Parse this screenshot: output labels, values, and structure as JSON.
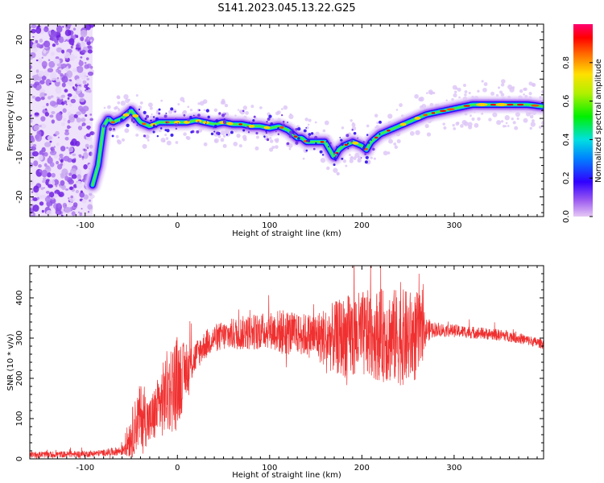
{
  "title": "S141.2023.045.13.22.G25",
  "chart_data": [
    {
      "type": "heatmap",
      "name": "spectrogram",
      "xlabel": "Height of straight line (km)",
      "ylabel": "Frequency (Hz)",
      "xlim": [
        -160,
        397
      ],
      "ylim": [
        -25,
        24
      ],
      "xticks": [
        -100,
        0,
        100,
        200,
        300
      ],
      "yticks": [
        -20,
        -10,
        0,
        10,
        20
      ],
      "colorbar": {
        "label": "Normalized spectral amplitude",
        "range": [
          0,
          1
        ],
        "ticks": [
          "0.0",
          "0.2",
          "0.4",
          "0.6",
          "0.8"
        ]
      },
      "noise_region_x": [
        -160,
        -92
      ],
      "ridge": {
        "x": [
          -92,
          -86,
          -80,
          -75,
          -70,
          -60,
          -50,
          -40,
          -30,
          -20,
          -10,
          0,
          10,
          20,
          30,
          40,
          50,
          60,
          70,
          80,
          90,
          100,
          110,
          120,
          125,
          130,
          135,
          140,
          150,
          160,
          165,
          170,
          175,
          180,
          190,
          200,
          205,
          210,
          220,
          230,
          240,
          250,
          260,
          270,
          280,
          290,
          300,
          310,
          320,
          340,
          360,
          380,
          397
        ],
        "freq": [
          -17,
          -12,
          -2,
          0,
          -1,
          0,
          2,
          -1,
          -2,
          -1,
          -1,
          -1,
          -1,
          -0.5,
          -1,
          -1.5,
          -1,
          -1.5,
          -1.5,
          -2,
          -2,
          -2.5,
          -2,
          -3,
          -4,
          -5,
          -5,
          -6,
          -6,
          -6,
          -8,
          -10,
          -8,
          -7,
          -6,
          -7,
          -8,
          -6,
          -4,
          -3,
          -2,
          -1,
          0,
          1,
          1.5,
          2,
          2.5,
          3,
          3.5,
          3.5,
          3.5,
          3.5,
          3
        ]
      }
    },
    {
      "type": "line",
      "name": "snr",
      "xlabel": "Height of straight line (km)",
      "ylabel": "SNR (10 * v/v)",
      "xlim": [
        -160,
        397
      ],
      "ylim": [
        0,
        480
      ],
      "xticks": [
        -100,
        0,
        100,
        200,
        300
      ],
      "yticks": [
        0,
        100,
        200,
        300,
        400
      ],
      "color": "#f03030",
      "series": [
        {
          "envelope": {
            "x": [
              -160,
              -100,
              -80,
              -60,
              -50,
              -40,
              -30,
              -20,
              -10,
              0,
              10,
              20,
              30,
              40,
              60,
              80,
              100,
              115,
              130,
              150,
              170,
              190,
              210,
              230,
              250,
              262,
              270,
              280,
              300,
              330,
              360,
              397
            ],
            "mid": [
              10,
              12,
              15,
              20,
              60,
              110,
              90,
              130,
              170,
              190,
              220,
              255,
              285,
              300,
              310,
              315,
              320,
              315,
              310,
              305,
              300,
              305,
              310,
              305,
              300,
              305,
              320,
              322,
              318,
              312,
              305,
              285
            ],
            "amp": [
              8,
              8,
              8,
              12,
              60,
              80,
              60,
              80,
              110,
              120,
              60,
              40,
              35,
              35,
              40,
              45,
              45,
              60,
              50,
              60,
              90,
              110,
              110,
              120,
              120,
              110,
              30,
              18,
              16,
              15,
              14,
              12
            ]
          }
        }
      ]
    }
  ]
}
